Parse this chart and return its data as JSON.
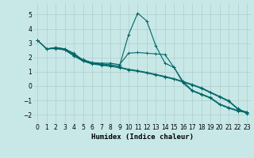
{
  "background_color": "#c8e8e8",
  "grid_color": "#b0cccc",
  "line_color": "#006666",
  "xlabel": "Humidex (Indice chaleur)",
  "xlim": [
    -0.5,
    23.5
  ],
  "ylim": [
    -2.6,
    5.8
  ],
  "yticks": [
    -2,
    -1,
    0,
    1,
    2,
    3,
    4,
    5
  ],
  "xticks": [
    0,
    1,
    2,
    3,
    4,
    5,
    6,
    7,
    8,
    9,
    10,
    11,
    12,
    13,
    14,
    15,
    16,
    17,
    18,
    19,
    20,
    21,
    22,
    23
  ],
  "series": [
    {
      "x": [
        0,
        1,
        2,
        3,
        4,
        5,
        6,
        7,
        8,
        9,
        10,
        11,
        12,
        13,
        14,
        15,
        16,
        17,
        18,
        19,
        20,
        21,
        22,
        23
      ],
      "y": [
        3.2,
        2.6,
        2.7,
        2.6,
        2.3,
        1.8,
        1.6,
        1.55,
        1.5,
        1.4,
        3.6,
        5.1,
        4.55,
        2.8,
        1.6,
        1.3,
        0.3,
        -0.3,
        -0.55,
        -0.8,
        -1.25,
        -1.5,
        -1.7,
        -1.8
      ]
    },
    {
      "x": [
        0,
        1,
        2,
        3,
        4,
        5,
        6,
        7,
        8,
        9,
        10,
        11,
        12,
        13,
        14,
        15,
        16,
        17,
        18,
        19,
        20,
        21,
        22,
        23
      ],
      "y": [
        3.2,
        2.6,
        2.7,
        2.6,
        2.2,
        1.85,
        1.65,
        1.6,
        1.6,
        1.5,
        2.3,
        2.35,
        2.3,
        2.25,
        2.2,
        1.3,
        0.2,
        -0.35,
        -0.6,
        -0.85,
        -1.3,
        -1.55,
        -1.75,
        -1.85
      ]
    },
    {
      "x": [
        0,
        1,
        2,
        3,
        4,
        5,
        6,
        7,
        8,
        9,
        10,
        11,
        12,
        13,
        14,
        15,
        16,
        17,
        18,
        19,
        20,
        21,
        22,
        23
      ],
      "y": [
        3.2,
        2.6,
        2.65,
        2.55,
        2.15,
        1.78,
        1.58,
        1.5,
        1.42,
        1.32,
        1.18,
        1.08,
        0.96,
        0.82,
        0.68,
        0.52,
        0.32,
        0.12,
        -0.12,
        -0.42,
        -0.72,
        -1.02,
        -1.57,
        -1.87
      ]
    },
    {
      "x": [
        0,
        1,
        2,
        3,
        4,
        5,
        6,
        7,
        8,
        9,
        10,
        11,
        12,
        13,
        14,
        15,
        16,
        17,
        18,
        19,
        20,
        21,
        22,
        23
      ],
      "y": [
        3.2,
        2.6,
        2.62,
        2.52,
        2.1,
        1.74,
        1.54,
        1.46,
        1.38,
        1.28,
        1.13,
        1.03,
        0.91,
        0.77,
        0.63,
        0.47,
        0.27,
        0.07,
        -0.17,
        -0.47,
        -0.77,
        -1.07,
        -1.62,
        -1.92
      ]
    }
  ]
}
